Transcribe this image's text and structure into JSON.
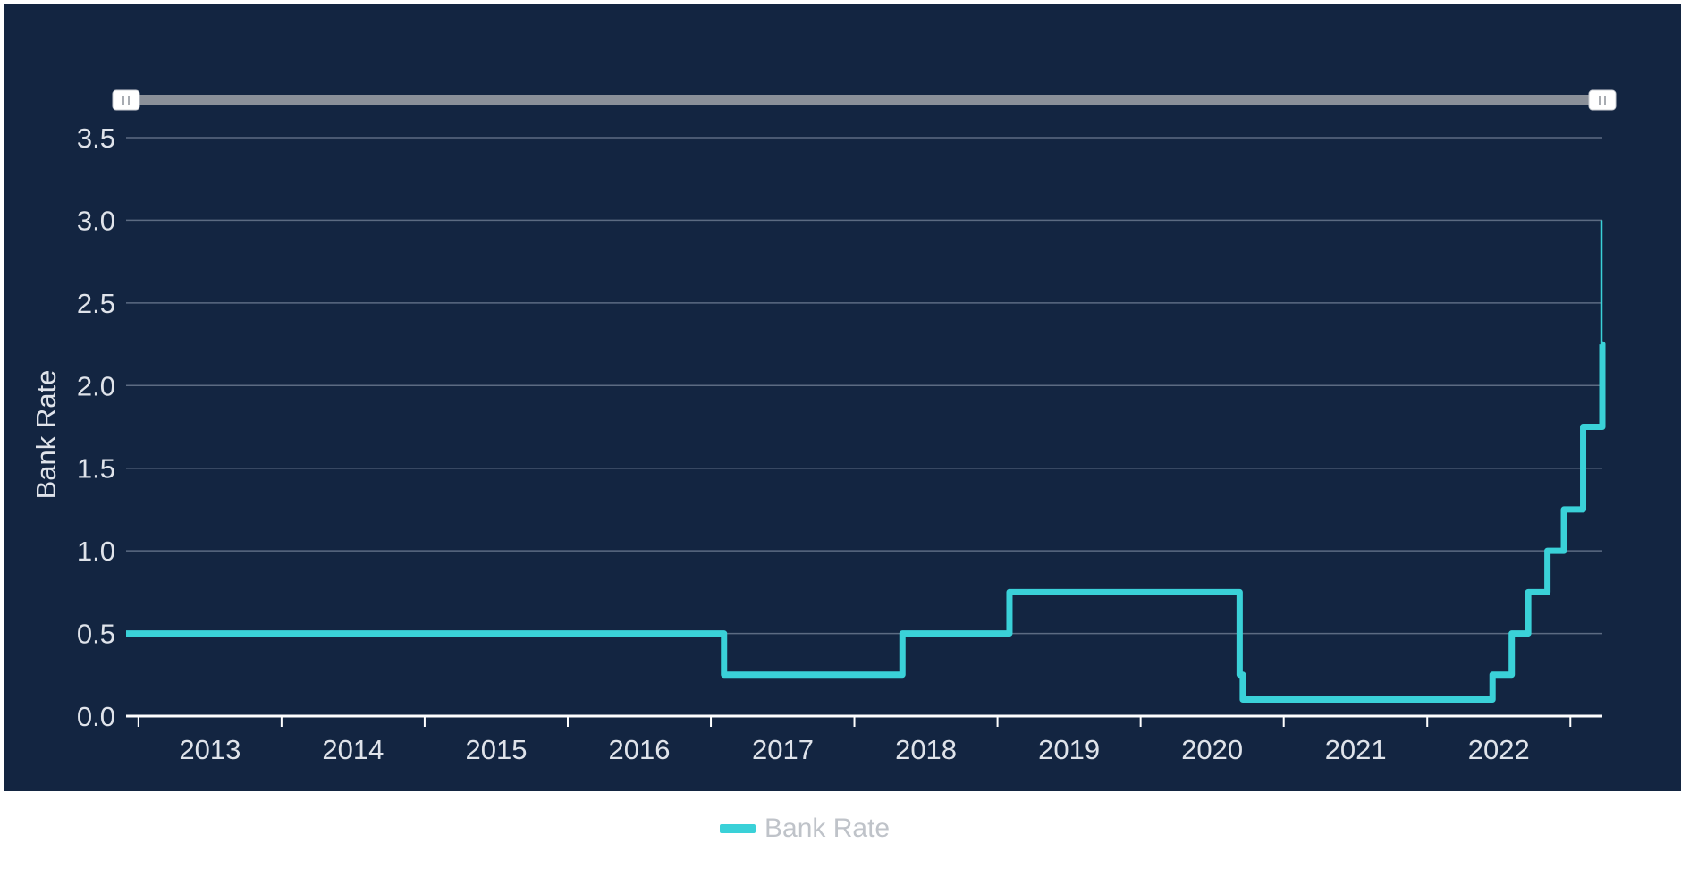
{
  "colors": {
    "background": "#132541",
    "series": "#3ad1d8",
    "grid": "#5c6b82",
    "axis_line": "#ffffff",
    "text": "#dfe3ea",
    "legend_text": "#bfc3c9",
    "navigator": "#8a9099"
  },
  "navigator": {
    "left_handle_icon": "grip-lines-icon",
    "right_handle_icon": "grip-lines-icon",
    "range": [
      "2012-06-01",
      "2022-09-22"
    ]
  },
  "legend": {
    "label": "Bank Rate",
    "position": "bottom-center"
  },
  "chart_data": {
    "type": "line",
    "interpolation": "step",
    "ylabel": "Bank Rate",
    "xlabel": "",
    "ylim": [
      0,
      3.5
    ],
    "y_ticks": [
      0.0,
      0.5,
      1.0,
      1.5,
      2.0,
      2.5,
      3.0,
      3.5
    ],
    "y_tick_labels": [
      "0.0",
      "0.5",
      "1.0",
      "1.5",
      "2.0",
      "2.5",
      "3.0",
      "3.5"
    ],
    "xlim": [
      "2012-06-01",
      "2022-09-22"
    ],
    "x_ticks": [
      "2013-01-01",
      "2014-01-01",
      "2015-01-01",
      "2016-01-01",
      "2017-01-01",
      "2018-01-01",
      "2019-01-01",
      "2020-01-01",
      "2021-01-01",
      "2022-01-01"
    ],
    "x_tick_labels": [
      "2013",
      "2014",
      "2015",
      "2016",
      "2017",
      "2018",
      "2019",
      "2020",
      "2021",
      "2022"
    ],
    "grid": true,
    "series": [
      {
        "name": "Bank Rate",
        "points": [
          {
            "x": "2012-06-01",
            "y": 0.5
          },
          {
            "x": "2016-08-04",
            "y": 0.25
          },
          {
            "x": "2017-11-02",
            "y": 0.5
          },
          {
            "x": "2018-08-02",
            "y": 0.75
          },
          {
            "x": "2020-03-11",
            "y": 0.25
          },
          {
            "x": "2020-03-19",
            "y": 0.1
          },
          {
            "x": "2021-12-16",
            "y": 0.25
          },
          {
            "x": "2022-02-03",
            "y": 0.5
          },
          {
            "x": "2022-03-17",
            "y": 0.75
          },
          {
            "x": "2022-05-05",
            "y": 1.0
          },
          {
            "x": "2022-06-16",
            "y": 1.25
          },
          {
            "x": "2022-08-04",
            "y": 1.75
          },
          {
            "x": "2022-09-22",
            "y": 2.25
          },
          {
            "x": "2022-09-22",
            "y": 3.0
          }
        ]
      }
    ]
  }
}
